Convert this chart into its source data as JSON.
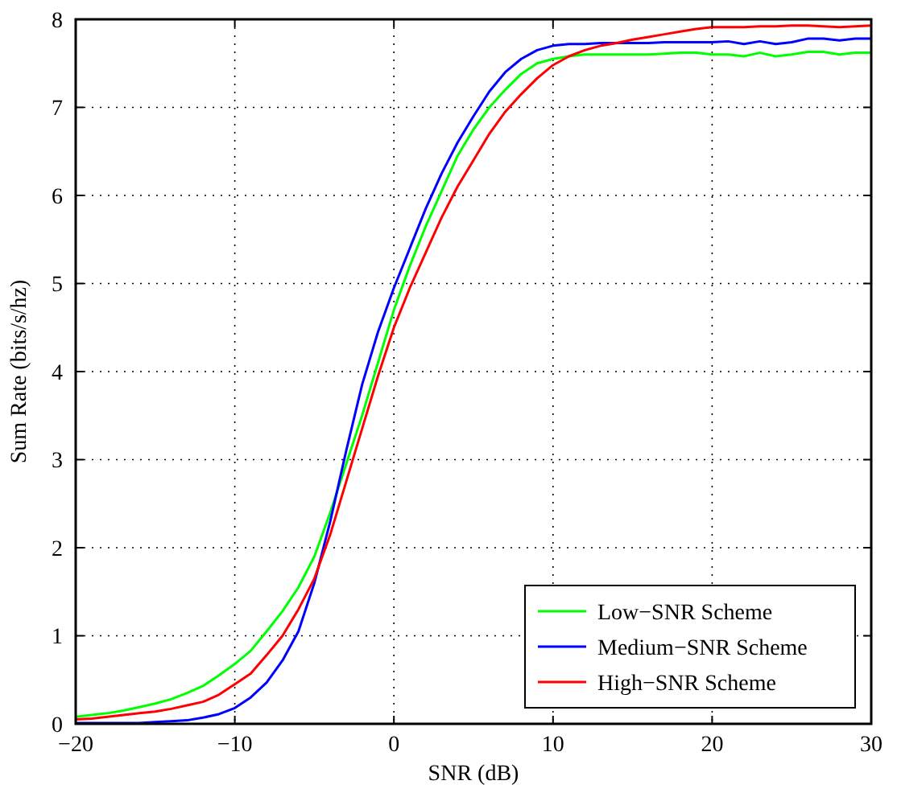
{
  "chart_data": {
    "type": "line",
    "xlabel": "SNR (dB)",
    "ylabel": "Sum Rate (bits/s/hz)",
    "x": [
      -20,
      -19,
      -18,
      -17,
      -16,
      -15,
      -14,
      -13,
      -12,
      -11,
      -10,
      -9,
      -8,
      -7,
      -6,
      -5,
      -4,
      -3,
      -2,
      -1,
      0,
      1,
      2,
      3,
      4,
      5,
      6,
      7,
      8,
      9,
      10,
      11,
      12,
      13,
      14,
      15,
      16,
      17,
      18,
      19,
      20,
      21,
      22,
      23,
      24,
      25,
      26,
      27,
      28,
      29,
      30
    ],
    "series": [
      {
        "name": "Low−SNR Scheme",
        "color": "#00ff00",
        "values": [
          0.08,
          0.1,
          0.12,
          0.15,
          0.19,
          0.23,
          0.28,
          0.35,
          0.43,
          0.55,
          0.68,
          0.83,
          1.05,
          1.28,
          1.55,
          1.9,
          2.4,
          2.95,
          3.5,
          4.1,
          4.7,
          5.2,
          5.65,
          6.05,
          6.45,
          6.75,
          7.0,
          7.2,
          7.38,
          7.5,
          7.55,
          7.58,
          7.6,
          7.6,
          7.6,
          7.6,
          7.6,
          7.61,
          7.62,
          7.62,
          7.6,
          7.6,
          7.58,
          7.62,
          7.58,
          7.6,
          7.63,
          7.63,
          7.6,
          7.62,
          7.62
        ]
      },
      {
        "name": "Medium−SNR Scheme",
        "color": "#0000ff",
        "values": [
          0.01,
          0.01,
          0.01,
          0.01,
          0.01,
          0.02,
          0.03,
          0.04,
          0.07,
          0.11,
          0.18,
          0.3,
          0.47,
          0.72,
          1.05,
          1.6,
          2.3,
          3.1,
          3.85,
          4.45,
          4.95,
          5.4,
          5.85,
          6.25,
          6.6,
          6.9,
          7.18,
          7.4,
          7.55,
          7.65,
          7.7,
          7.72,
          7.72,
          7.73,
          7.73,
          7.73,
          7.73,
          7.74,
          7.74,
          7.74,
          7.74,
          7.75,
          7.72,
          7.75,
          7.72,
          7.74,
          7.78,
          7.78,
          7.76,
          7.78,
          7.78
        ]
      },
      {
        "name": "High−SNR Scheme",
        "color": "#ff0000",
        "values": [
          0.05,
          0.06,
          0.08,
          0.1,
          0.12,
          0.14,
          0.17,
          0.21,
          0.25,
          0.33,
          0.45,
          0.57,
          0.78,
          1.0,
          1.3,
          1.65,
          2.15,
          2.75,
          3.35,
          3.95,
          4.5,
          4.95,
          5.35,
          5.75,
          6.1,
          6.4,
          6.7,
          6.95,
          7.15,
          7.33,
          7.48,
          7.58,
          7.65,
          7.7,
          7.73,
          7.77,
          7.8,
          7.83,
          7.86,
          7.89,
          7.91,
          7.91,
          7.91,
          7.92,
          7.92,
          7.93,
          7.93,
          7.92,
          7.91,
          7.92,
          7.93
        ]
      }
    ],
    "xlim": [
      -20,
      30
    ],
    "xticks": [
      {
        "value": -20,
        "label": "−20"
      },
      {
        "value": -10,
        "label": "−10"
      },
      0,
      10,
      20,
      30
    ],
    "ylim": [
      0,
      8
    ],
    "yticks": [
      0,
      1,
      2,
      3,
      4,
      5,
      6,
      7,
      8
    ],
    "grid": true,
    "legend": "bottom right",
    "line_style": "solid",
    "marker": "none"
  }
}
